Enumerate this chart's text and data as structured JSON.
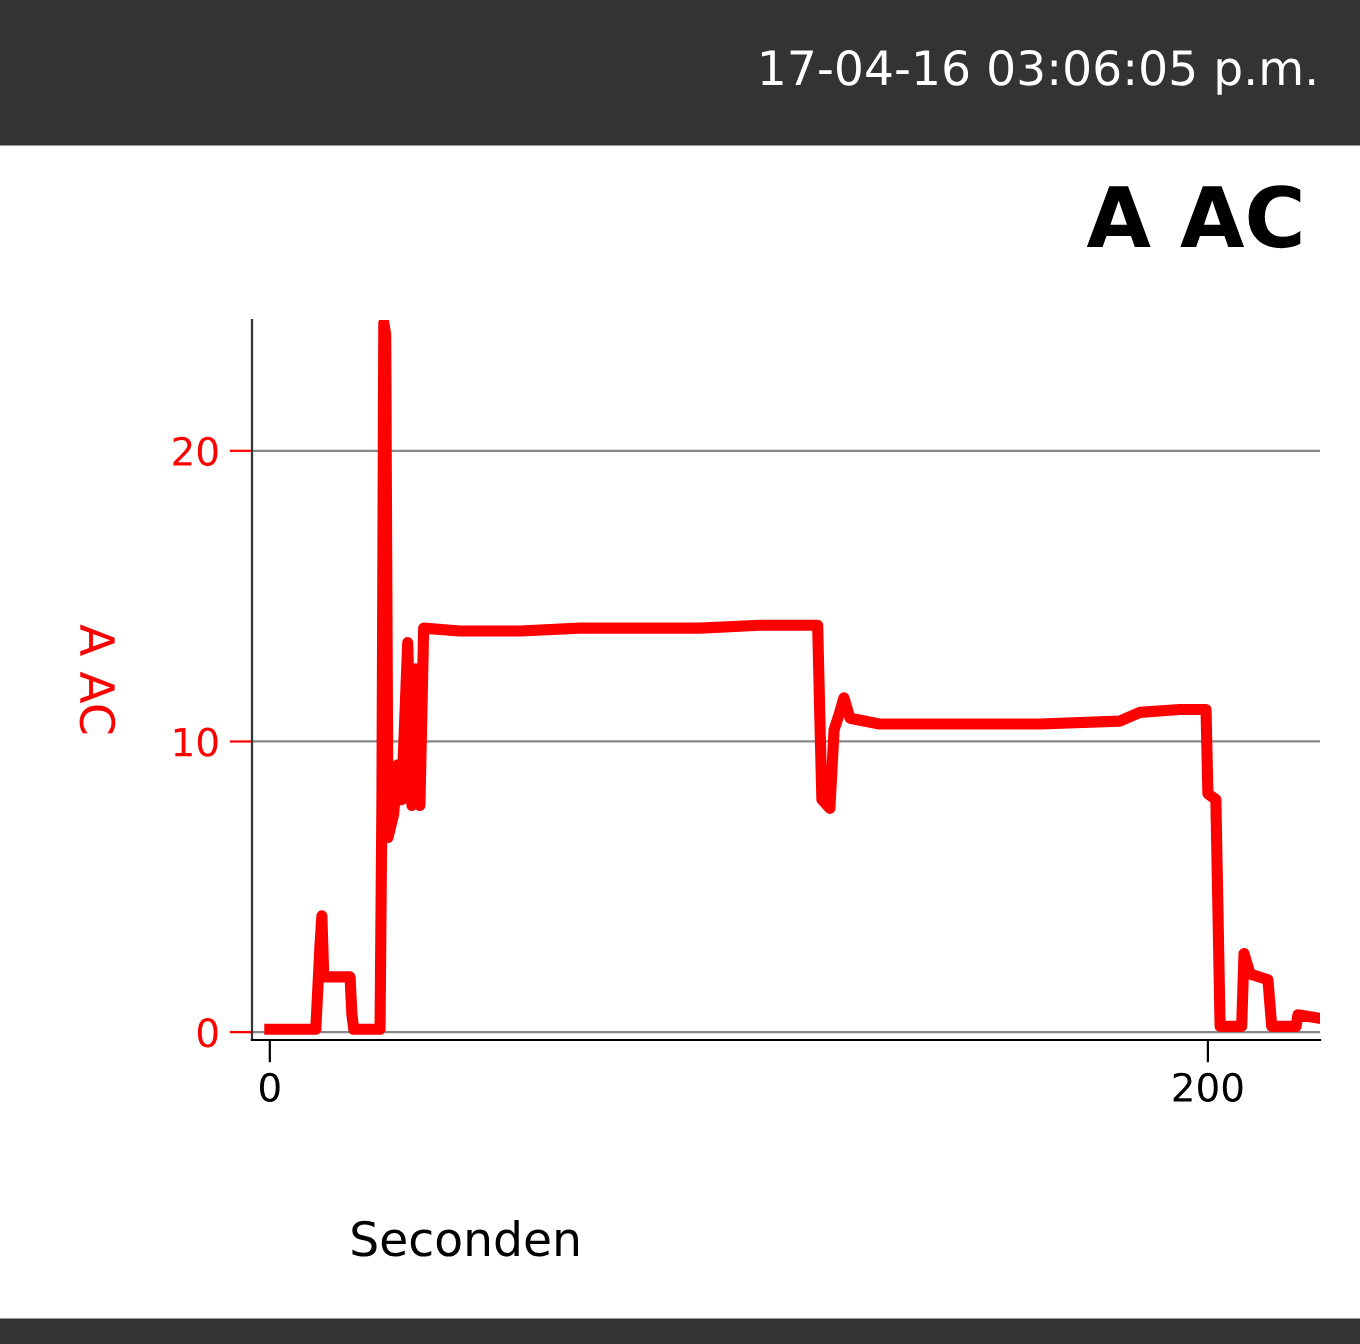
{
  "chart_data": {
    "type": "line",
    "title": "A AC",
    "xlabel": "Seconden",
    "ylabel": "A AC",
    "annotations": [
      "17-04-16 03:06:05 p.m."
    ],
    "x": [
      0,
      9.8,
      10.7,
      11.1,
      11.5,
      17.1,
      17.5,
      17.9,
      23.5,
      23.9,
      24.3,
      24.7,
      25.2,
      26.4,
      27.3,
      28.1,
      29.4,
      30.3,
      31.1,
      32,
      32.8,
      40.5,
      53.3,
      66.1,
      78.9,
      91.7,
      104.5,
      116.8,
      117.3,
      117.7,
      119.4,
      120.3,
      121.5,
      122.4,
      123.7,
      130,
      147.1,
      164.2,
      181.2,
      185.5,
      194,
      199.6,
      200,
      201.7,
      202.6,
      207.2,
      207.7,
      209,
      212.8,
      213.6,
      218.8,
      219.2,
      223
    ],
    "series": [
      {
        "color": "#ff0000",
        "values": [
          0.1,
          0.1,
          3.0,
          4.0,
          1.9,
          1.9,
          0.6,
          0.1,
          0.1,
          8,
          24.4,
          24,
          6.7,
          7.5,
          9.2,
          8,
          13.4,
          7.8,
          12.5,
          7.8,
          13.9,
          13.8,
          13.8,
          13.9,
          13.9,
          13.9,
          14,
          14,
          10.6,
          8,
          7.7,
          10.4,
          11,
          11.5,
          10.8,
          10.6,
          10.6,
          10.6,
          10.7,
          11,
          11.1,
          11.1,
          8.2,
          8,
          0.2,
          0.2,
          2.7,
          2,
          1.8,
          0.2,
          0.2,
          0.6,
          0.5
        ]
      }
    ],
    "xlim": [
      -3.8,
      223.9
    ],
    "ylim": [
      -0.27,
      24.5
    ],
    "xticks": [
      0,
      200
    ],
    "yticks": [
      0,
      10,
      20
    ],
    "grid": "y",
    "legend": false,
    "marker": "none",
    "line_style": "solid"
  }
}
